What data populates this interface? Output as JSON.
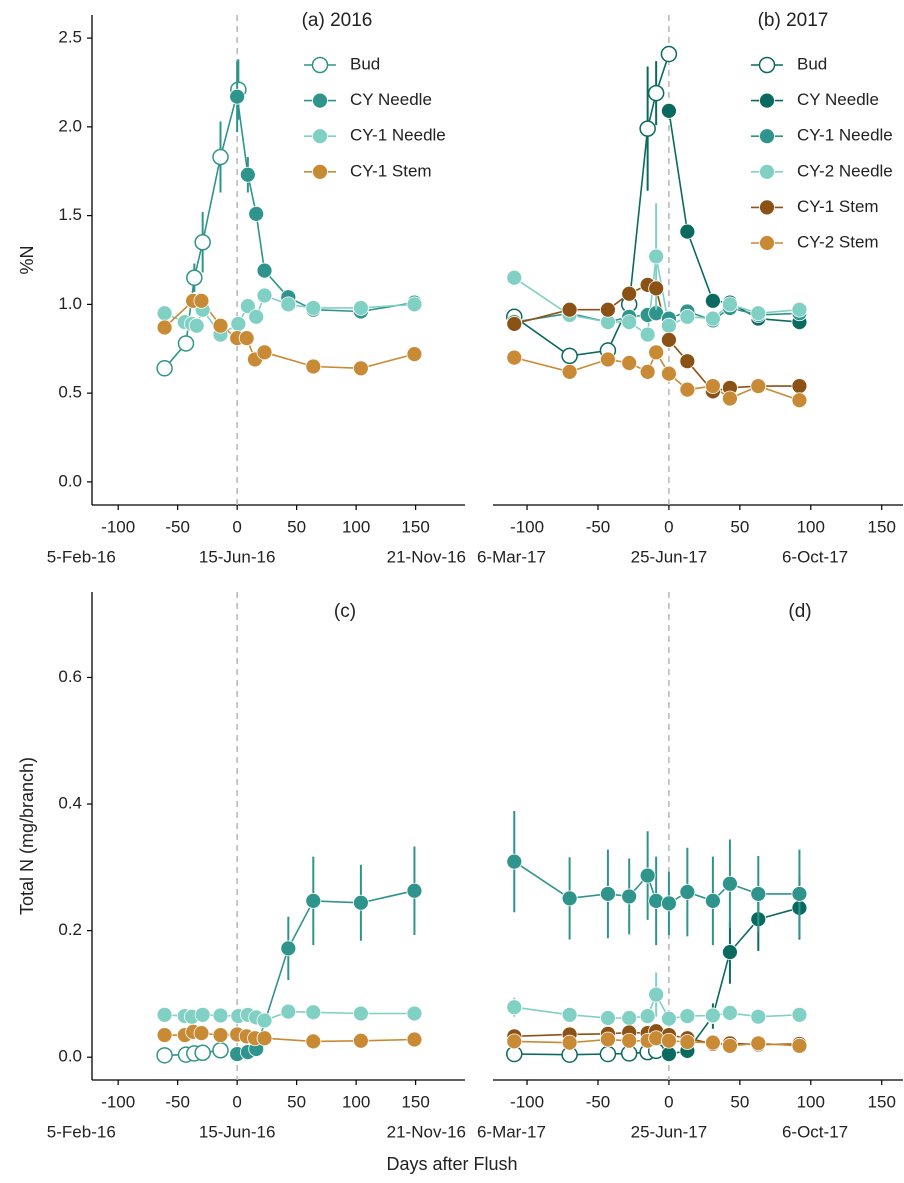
{
  "chart_data": [
    {
      "type": "line",
      "title": "(a) 2016",
      "ylabel": "%N",
      "xlim": [
        -122,
        191.5
      ],
      "ylim": [
        -0.13,
        2.63
      ],
      "xticks": [
        -100,
        -50,
        0,
        50,
        100,
        150
      ],
      "date_ticks": [
        {
          "value": -131,
          "label": "5-Feb-16"
        },
        {
          "value": 0,
          "label": "15-Jun-16"
        },
        {
          "value": 159,
          "label": "21-Nov-16"
        }
      ],
      "yticks": [
        {
          "value": 0,
          "label": "0.0"
        },
        0.5,
        {
          "value": 1,
          "label": "1.0"
        },
        1.5,
        {
          "value": 2,
          "label": "2.0"
        },
        2.5
      ],
      "vline": 0,
      "legend": "top-right",
      "series": [
        {
          "name": "Bud",
          "color": "#2f948b",
          "marker": "open",
          "x": [
            -61,
            -43,
            -36,
            -29,
            -14,
            1
          ],
          "values": [
            0.64,
            0.78,
            1.15,
            1.35,
            1.83,
            2.21
          ],
          "errors": [
            null,
            null,
            0.08,
            0.17,
            0.2,
            0.17
          ]
        },
        {
          "name": "CY Needle",
          "color": "#2f948b",
          "marker": "filled",
          "x": [
            0,
            9,
            16,
            23,
            43,
            64,
            104,
            149
          ],
          "values": [
            2.17,
            1.73,
            1.51,
            1.19,
            1.04,
            0.97,
            0.96,
            1.01
          ],
          "errors": [
            0.2,
            0.1,
            null,
            null,
            null,
            null,
            null,
            null
          ]
        },
        {
          "name": "CY-1 Needle",
          "color": "#80d0c3",
          "marker": "filled",
          "x": [
            -61,
            -44,
            -38,
            -34,
            -29,
            -14,
            1,
            9,
            16,
            23,
            43,
            64,
            104,
            149
          ],
          "values": [
            0.95,
            0.9,
            0.89,
            0.88,
            0.97,
            0.83,
            0.89,
            0.99,
            0.93,
            1.05,
            1.0,
            0.98,
            0.98,
            1.0
          ]
        },
        {
          "name": "CY-1 Stem",
          "color": "#c98a36",
          "marker": "filled",
          "x": [
            -61,
            -37,
            -30,
            -14,
            0,
            8,
            15,
            23,
            64,
            104,
            149
          ],
          "values": [
            0.87,
            1.02,
            1.02,
            0.88,
            0.81,
            0.81,
            0.69,
            0.73,
            0.65,
            0.64,
            0.72
          ]
        }
      ]
    },
    {
      "type": "line",
      "title": "(b) 2017",
      "xlim": [
        -124,
        165
      ],
      "ylim": [
        -0.13,
        2.63
      ],
      "xticks": [
        -100,
        -50,
        0,
        50,
        100,
        150
      ],
      "date_ticks": [
        {
          "value": -111,
          "label": "6-Mar-17"
        },
        {
          "value": 0,
          "label": "25-Jun-17"
        },
        {
          "value": 103,
          "label": "6-Oct-17"
        }
      ],
      "vline": 0,
      "legend": "top-right",
      "series": [
        {
          "name": "Bud",
          "color": "#0b6a60",
          "marker": "open",
          "x": [
            -109,
            -70,
            -43,
            -28,
            -15,
            -9,
            0
          ],
          "values": [
            0.93,
            0.71,
            0.74,
            1.0,
            1.99,
            2.19,
            2.41
          ],
          "errors": [
            null,
            null,
            null,
            null,
            0.35,
            0.18,
            null
          ]
        },
        {
          "name": "CY Needle",
          "color": "#0b6a60",
          "marker": "filled",
          "x": [
            0,
            13,
            31,
            43,
            63,
            92
          ],
          "values": [
            2.09,
            1.41,
            1.02,
            1.01,
            0.92,
            0.9
          ]
        },
        {
          "name": "CY-1 Needle",
          "color": "#2f948b",
          "marker": "filled",
          "x": [
            -109,
            -70,
            -43,
            -28,
            -15,
            -9,
            0,
            13,
            31,
            43,
            63,
            92
          ],
          "values": [
            0.9,
            0.95,
            0.9,
            0.93,
            0.94,
            0.95,
            0.92,
            0.96,
            0.91,
            0.98,
            0.94,
            0.95
          ]
        },
        {
          "name": "CY-2 Needle",
          "color": "#80d0c3",
          "marker": "filled",
          "x": [
            -109,
            -70,
            -43,
            -28,
            -15,
            -9,
            0,
            13,
            31,
            43,
            63,
            92
          ],
          "values": [
            1.15,
            0.94,
            0.9,
            0.9,
            0.83,
            1.27,
            0.88,
            0.93,
            0.92,
            1.0,
            0.95,
            0.97
          ],
          "errors": [
            null,
            null,
            null,
            null,
            null,
            0.3,
            null,
            null,
            null,
            null,
            null,
            null
          ]
        },
        {
          "name": "CY-1 Stem",
          "color": "#8c5115",
          "marker": "filled",
          "x": [
            -109,
            -70,
            -43,
            -28,
            -15,
            -9,
            0,
            13,
            31,
            43,
            63,
            92
          ],
          "values": [
            0.89,
            0.97,
            0.97,
            1.06,
            1.11,
            1.09,
            0.8,
            0.68,
            0.51,
            0.53,
            0.54,
            0.54
          ]
        },
        {
          "name": "CY-2 Stem",
          "color": "#c98a36",
          "marker": "filled",
          "x": [
            -109,
            -70,
            -43,
            -28,
            -15,
            -9,
            0,
            13,
            31,
            43,
            63,
            92
          ],
          "values": [
            0.7,
            0.62,
            0.69,
            0.67,
            0.62,
            0.73,
            0.61,
            0.52,
            0.54,
            0.47,
            0.54,
            0.46
          ]
        }
      ]
    },
    {
      "type": "line",
      "title": "(c)",
      "ylabel": "Total N (mg/branch)",
      "xlabel": "Days after Flush",
      "xlim": [
        -122,
        191.5
      ],
      "ylim": [
        -0.036,
        0.735
      ],
      "xticks": [
        -100,
        -50,
        0,
        50,
        100,
        150
      ],
      "date_ticks": [
        {
          "value": -131,
          "label": "5-Feb-16"
        },
        {
          "value": 0,
          "label": "15-Jun-16"
        },
        {
          "value": 159,
          "label": "21-Nov-16"
        }
      ],
      "yticks": [
        {
          "value": 0,
          "label": "0.0"
        },
        0.2,
        0.4,
        0.6
      ],
      "vline": 0,
      "series": [
        {
          "color": "#2f948b",
          "marker": "open",
          "x": [
            -61,
            -43,
            -36,
            -29,
            -14
          ],
          "values": [
            0.003,
            0.004,
            0.006,
            0.007,
            0.011
          ]
        },
        {
          "color": "#2f948b",
          "marker": "filled",
          "x": [
            0,
            9,
            16,
            43,
            64,
            104,
            149
          ],
          "values": [
            0.005,
            0.008,
            0.013,
            0.172,
            0.247,
            0.244,
            0.263
          ],
          "errors": [
            null,
            null,
            null,
            0.05,
            0.07,
            0.06,
            0.07
          ]
        },
        {
          "color": "#80d0c3",
          "marker": "filled",
          "x": [
            -61,
            -44,
            -38,
            -29,
            -14,
            1,
            9,
            16,
            23,
            43,
            64,
            104,
            149
          ],
          "values": [
            0.067,
            0.065,
            0.064,
            0.067,
            0.066,
            0.065,
            0.067,
            0.063,
            0.058,
            0.072,
            0.071,
            0.069,
            0.069
          ]
        },
        {
          "color": "#c98a36",
          "marker": "filled",
          "x": [
            -61,
            -44,
            -37,
            -30,
            -14,
            0,
            8,
            15,
            23,
            64,
            104,
            149
          ],
          "values": [
            0.035,
            0.035,
            0.04,
            0.038,
            0.035,
            0.036,
            0.033,
            0.03,
            0.03,
            0.025,
            0.026,
            0.028
          ]
        }
      ]
    },
    {
      "type": "line",
      "title": "(d)",
      "xlim": [
        -124,
        165
      ],
      "ylim": [
        -0.036,
        0.735
      ],
      "xticks": [
        -100,
        -50,
        0,
        50,
        100,
        150
      ],
      "date_ticks": [
        {
          "value": -111,
          "label": "6-Mar-17"
        },
        {
          "value": 0,
          "label": "25-Jun-17"
        },
        {
          "value": 103,
          "label": "6-Oct-17"
        }
      ],
      "vline": 0,
      "series": [
        {
          "color": "#0b6a60",
          "marker": "open",
          "x": [
            -109,
            -70,
            -43,
            -28,
            -15,
            -9
          ],
          "values": [
            0.005,
            0.004,
            0.005,
            0.006,
            0.008,
            0.01
          ]
        },
        {
          "color": "#0b6a60",
          "marker": "filled",
          "x": [
            0,
            13,
            31,
            43,
            63,
            92
          ],
          "values": [
            0.005,
            0.01,
            0.065,
            0.166,
            0.218,
            0.236
          ],
          "errors": [
            null,
            null,
            0.02,
            0.05,
            0.05,
            0.05
          ]
        },
        {
          "color": "#2f948b",
          "marker": "filled",
          "x": [
            -109,
            -70,
            -43,
            -28,
            -15,
            -9,
            0,
            13,
            31,
            43,
            63,
            92
          ],
          "values": [
            0.309,
            0.251,
            0.258,
            0.254,
            0.287,
            0.247,
            0.243,
            0.261,
            0.247,
            0.274,
            0.258,
            0.258
          ],
          "errors": [
            0.08,
            0.065,
            0.07,
            0.06,
            0.07,
            0.07,
            0.05,
            0.07,
            0.07,
            0.07,
            0.06,
            0.07
          ]
        },
        {
          "color": "#80d0c3",
          "marker": "filled",
          "x": [
            -109,
            -70,
            -43,
            -28,
            -15,
            -9,
            0,
            13,
            31,
            43,
            63,
            92
          ],
          "values": [
            0.079,
            0.067,
            0.062,
            0.062,
            0.065,
            0.099,
            0.061,
            0.065,
            0.066,
            0.07,
            0.064,
            0.067
          ],
          "errors": [
            0.015,
            null,
            null,
            null,
            null,
            0.035,
            null,
            null,
            null,
            null,
            null,
            null
          ]
        },
        {
          "color": "#8c5115",
          "marker": "filled",
          "x": [
            -109,
            -70,
            -43,
            -28,
            -15,
            -9,
            0,
            13,
            31,
            43,
            63,
            92
          ],
          "values": [
            0.033,
            0.036,
            0.037,
            0.039,
            0.038,
            0.041,
            0.035,
            0.03,
            0.021,
            0.022,
            0.02,
            0.021
          ]
        },
        {
          "color": "#c98a36",
          "marker": "filled",
          "x": [
            -109,
            -70,
            -43,
            -28,
            -15,
            -9,
            0,
            13,
            31,
            43,
            63,
            92
          ],
          "values": [
            0.025,
            0.023,
            0.028,
            0.026,
            0.026,
            0.03,
            0.026,
            0.024,
            0.023,
            0.018,
            0.022,
            0.018
          ]
        }
      ]
    }
  ]
}
